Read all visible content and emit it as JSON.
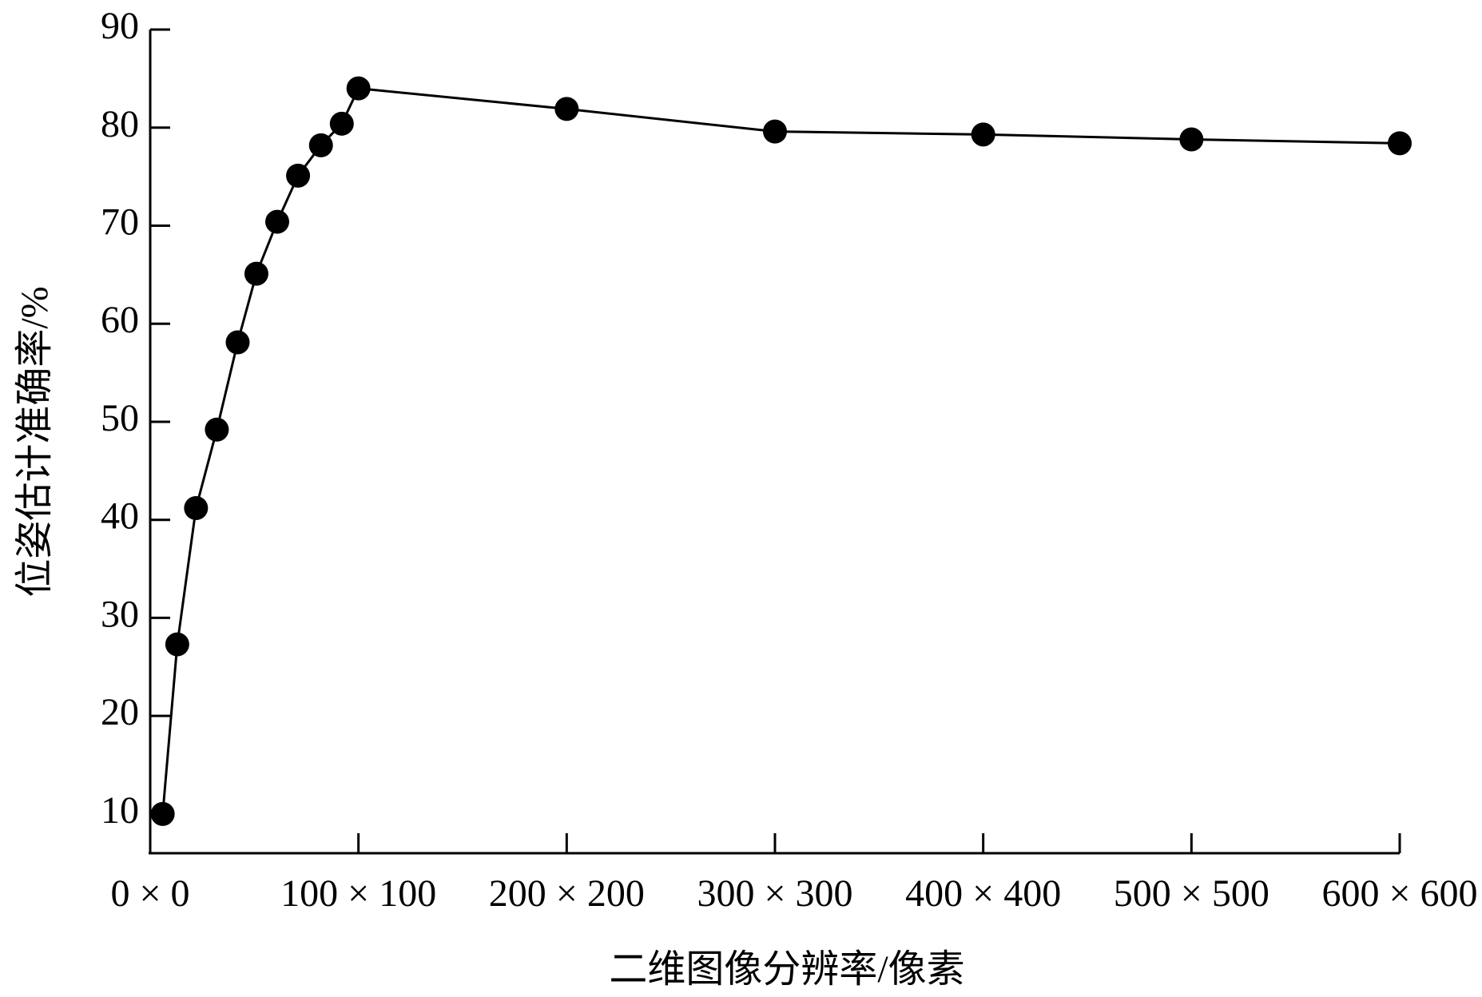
{
  "chart_data": {
    "type": "line",
    "x_label": "二维图像分辨率/像素",
    "y_label": "位姿估计准确率/%",
    "x": [
      6,
      13,
      22,
      32,
      42,
      51,
      61,
      71,
      82,
      92,
      100,
      200,
      300,
      400,
      500,
      600
    ],
    "series": [
      {
        "name": "位姿估计准确率",
        "color": "#000000",
        "values": [
          10,
          27.3,
          41.2,
          49.2,
          58.1,
          65.1,
          70.4,
          75.1,
          78.2,
          80.4,
          84.0,
          81.9,
          79.6,
          79.3,
          78.8,
          78.4
        ]
      }
    ],
    "xlim": [
      0,
      600
    ],
    "xticks": [
      {
        "value": 0,
        "label": "0 × 0"
      },
      {
        "value": 100,
        "label": "100 × 100"
      },
      {
        "value": 200,
        "label": "200 × 200"
      },
      {
        "value": 300,
        "label": "300 × 300"
      },
      {
        "value": 400,
        "label": "400 × 400"
      },
      {
        "value": 500,
        "label": "500 × 500"
      },
      {
        "value": 600,
        "label": "600 × 600"
      }
    ],
    "ylim": [
      6,
      90
    ],
    "yticks": [
      10,
      20,
      30,
      40,
      50,
      60,
      70,
      80,
      90
    ],
    "grid": false
  }
}
